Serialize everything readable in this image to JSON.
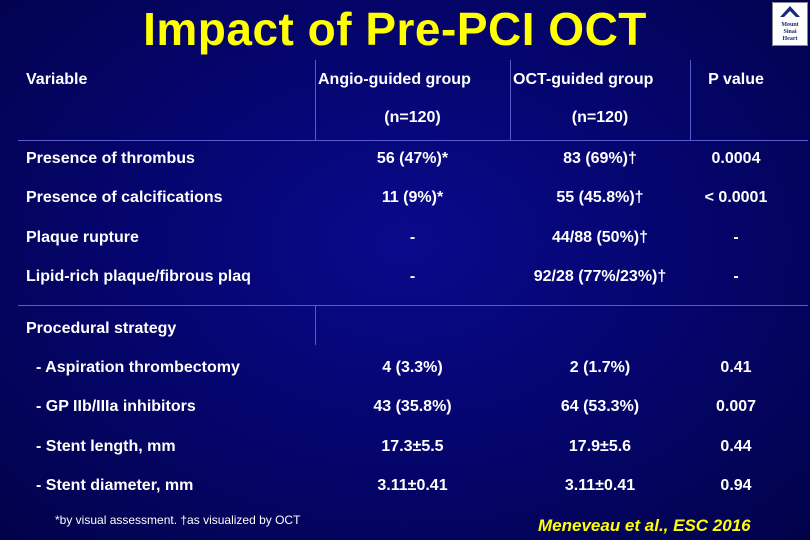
{
  "title": "Impact of Pre-PCI OCT",
  "logo": {
    "line1": "Mount",
    "line2": "Sinai",
    "line3": "Heart"
  },
  "header": {
    "variable": "Variable",
    "angio": "Angio-guided group",
    "oct": "OCT-guided group",
    "pvalue": "P value",
    "angio_n": "(n=120)",
    "oct_n": "(n=120)"
  },
  "rows": [
    {
      "label": "Presence of thrombus",
      "angio": "56 (47%)*",
      "oct": "83 (69%)†",
      "p": "0.0004"
    },
    {
      "label": "Presence of calcifications",
      "angio": "11 (9%)*",
      "oct": "55 (45.8%)†",
      "p": "< 0.0001"
    },
    {
      "label": "Plaque rupture",
      "angio": "-",
      "oct": "44/88 (50%)†",
      "p": "-"
    },
    {
      "label": "Lipid-rich plaque/fibrous plaq",
      "angio": "-",
      "oct": "92/28 (77%/23%)†",
      "p": "-"
    }
  ],
  "section": "Procedural strategy",
  "proc_rows": [
    {
      "label": "- Aspiration thrombectomy",
      "angio": "4 (3.3%)",
      "oct": "2 (1.7%)",
      "p": "0.41"
    },
    {
      "label": "- GP IIb/IIIa inhibitors",
      "angio": "43 (35.8%)",
      "oct": "64 (53.3%)",
      "p": "0.007"
    },
    {
      "label": "- Stent length, mm",
      "angio": "17.3±5.5",
      "oct": "17.9±5.6",
      "p": "0.44"
    },
    {
      "label": "- Stent diameter, mm",
      "angio": "3.11±0.41",
      "oct": "3.11±0.41",
      "p": "0.94"
    }
  ],
  "footnote": "*by visual assessment. †as visualized by OCT",
  "citation": "Meneveau et al., ESC 2016",
  "colors": {
    "title": "#ffff00",
    "background": "#050570",
    "text": "#ffffff",
    "citation": "#ffff00"
  }
}
